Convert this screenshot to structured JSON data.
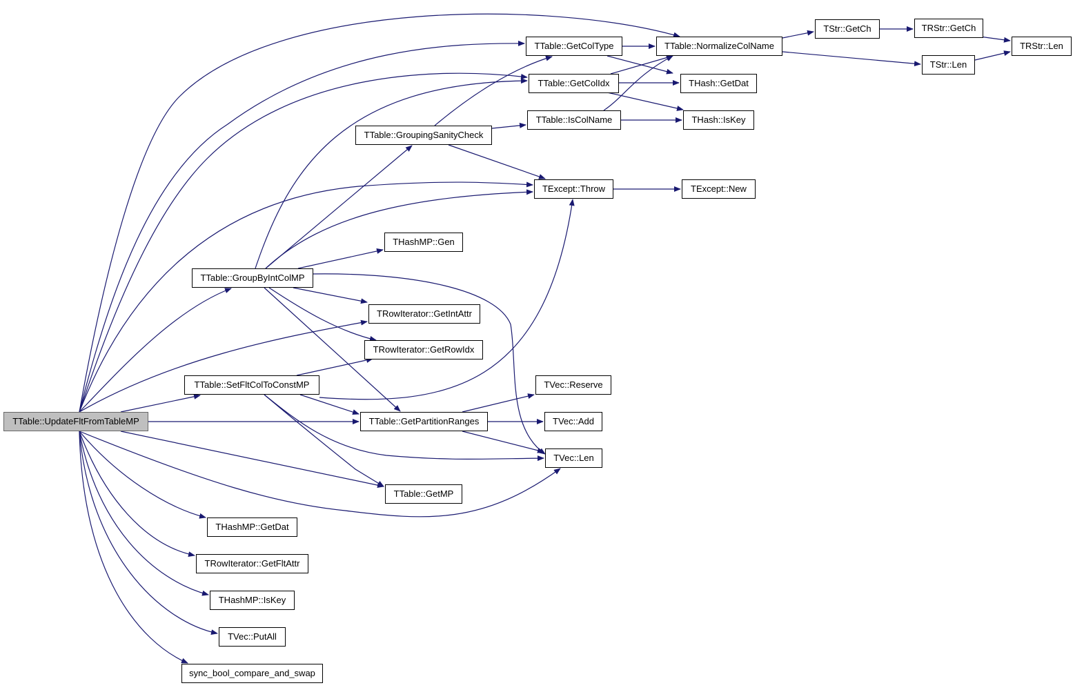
{
  "colors": {
    "edge": "#191970",
    "root_fill": "#bfbfbf",
    "node_fill": "#ffffff"
  },
  "nodes": {
    "root": "TTable::UpdateFltFromTableMP",
    "get_col_type": "TTable::GetColType",
    "normalize_col_name": "TTable::NormalizeColName",
    "tstr_getch": "TStr::GetCh",
    "trstr_getch": "TRStr::GetCh",
    "trstr_len": "TRStr::Len",
    "tstr_len": "TStr::Len",
    "get_col_idx": "TTable::GetColIdx",
    "thash_getdat": "THash::GetDat",
    "is_col_name": "TTable::IsColName",
    "thash_iskey": "THash::IsKey",
    "grouping_sanity_check": "TTable::GroupingSanityCheck",
    "texcept_throw": "TExcept::Throw",
    "texcept_new": "TExcept::New",
    "thashmp_gen": "THashMP::Gen",
    "group_by_int_col_mp": "TTable::GroupByIntColMP",
    "get_int_attr": "TRowIterator::GetIntAttr",
    "get_row_idx": "TRowIterator::GetRowIdx",
    "set_flt_col_to_const_mp": "TTable::SetFltColToConstMP",
    "get_partition_ranges": "TTable::GetPartitionRanges",
    "tvec_reserve": "TVec::Reserve",
    "tvec_add": "TVec::Add",
    "tvec_len": "TVec::Len",
    "get_mp": "TTable::GetMP",
    "thashmp_getdat": "THashMP::GetDat",
    "get_flt_attr": "TRowIterator::GetFltAttr",
    "thashmp_iskey": "THashMP::IsKey",
    "tvec_putall": "TVec::PutAll",
    "sync_cas": "sync_bool_compare_and_swap"
  },
  "edges": [
    [
      "root",
      "normalize_col_name"
    ],
    [
      "root",
      "get_col_type"
    ],
    [
      "root",
      "get_col_idx"
    ],
    [
      "root",
      "texcept_throw"
    ],
    [
      "root",
      "group_by_int_col_mp"
    ],
    [
      "root",
      "get_int_attr"
    ],
    [
      "root",
      "set_flt_col_to_const_mp"
    ],
    [
      "root",
      "get_partition_ranges"
    ],
    [
      "root",
      "get_mp"
    ],
    [
      "root",
      "tvec_len"
    ],
    [
      "root",
      "thashmp_getdat"
    ],
    [
      "root",
      "get_flt_attr"
    ],
    [
      "root",
      "thashmp_iskey"
    ],
    [
      "root",
      "tvec_putall"
    ],
    [
      "root",
      "sync_cas"
    ],
    [
      "group_by_int_col_mp",
      "get_col_idx"
    ],
    [
      "group_by_int_col_mp",
      "grouping_sanity_check"
    ],
    [
      "group_by_int_col_mp",
      "texcept_throw"
    ],
    [
      "group_by_int_col_mp",
      "thashmp_gen"
    ],
    [
      "group_by_int_col_mp",
      "get_int_attr"
    ],
    [
      "group_by_int_col_mp",
      "get_row_idx"
    ],
    [
      "group_by_int_col_mp",
      "get_partition_ranges"
    ],
    [
      "group_by_int_col_mp",
      "tvec_len"
    ],
    [
      "set_flt_col_to_const_mp",
      "get_row_idx"
    ],
    [
      "set_flt_col_to_const_mp",
      "texcept_throw"
    ],
    [
      "set_flt_col_to_const_mp",
      "get_partition_ranges"
    ],
    [
      "set_flt_col_to_const_mp",
      "get_mp"
    ],
    [
      "set_flt_col_to_const_mp",
      "tvec_len"
    ],
    [
      "grouping_sanity_check",
      "get_col_type"
    ],
    [
      "grouping_sanity_check",
      "is_col_name"
    ],
    [
      "grouping_sanity_check",
      "texcept_throw"
    ],
    [
      "get_partition_ranges",
      "tvec_reserve"
    ],
    [
      "get_partition_ranges",
      "tvec_add"
    ],
    [
      "get_partition_ranges",
      "tvec_len"
    ],
    [
      "get_col_type",
      "normalize_col_name"
    ],
    [
      "get_col_type",
      "thash_getdat"
    ],
    [
      "get_col_idx",
      "normalize_col_name"
    ],
    [
      "get_col_idx",
      "thash_getdat"
    ],
    [
      "get_col_idx",
      "thash_iskey"
    ],
    [
      "is_col_name",
      "normalize_col_name"
    ],
    [
      "is_col_name",
      "thash_iskey"
    ],
    [
      "normalize_col_name",
      "tstr_getch"
    ],
    [
      "normalize_col_name",
      "tstr_len"
    ],
    [
      "tstr_getch",
      "trstr_getch"
    ],
    [
      "trstr_getch",
      "trstr_len"
    ],
    [
      "tstr_len",
      "trstr_len"
    ],
    [
      "texcept_throw",
      "texcept_new"
    ]
  ]
}
